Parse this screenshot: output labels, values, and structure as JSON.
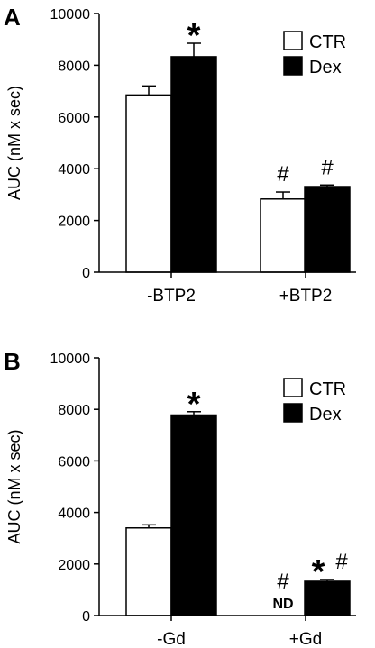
{
  "chart_data": [
    {
      "panel_label": "A",
      "type": "bar",
      "categories": [
        "-BTP2",
        "+BTP2"
      ],
      "ylabel": "AUC (nM x sec)",
      "xlabel": "",
      "ylim": [
        0,
        10000
      ],
      "yticks": [
        0,
        2000,
        4000,
        6000,
        8000,
        10000
      ],
      "legend_placement": "top-right",
      "series": [
        {
          "name": "CTR",
          "fill": "#ffffff",
          "values": [
            6850,
            2830
          ],
          "errors": [
            350,
            270
          ],
          "annotations": [
            "",
            "#"
          ]
        },
        {
          "name": "Dex",
          "fill": "#000000",
          "values": [
            8330,
            3310
          ],
          "errors": [
            520,
            60
          ],
          "annotations": [
            "*",
            "#"
          ]
        }
      ]
    },
    {
      "panel_label": "B",
      "type": "bar",
      "categories": [
        "-Gd",
        "+Gd"
      ],
      "ylabel": "AUC (nM x sec)",
      "xlabel": "",
      "ylim": [
        0,
        10000
      ],
      "yticks": [
        0,
        2000,
        4000,
        6000,
        8000,
        10000
      ],
      "legend_placement": "top-right",
      "series": [
        {
          "name": "CTR",
          "fill": "#ffffff",
          "values": [
            3400,
            0
          ],
          "errors": [
            120,
            0
          ],
          "annotations": [
            "",
            "#"
          ],
          "value_labels": [
            "",
            "ND"
          ]
        },
        {
          "name": "Dex",
          "fill": "#000000",
          "values": [
            7780,
            1330
          ],
          "errors": [
            130,
            70
          ],
          "annotations": [
            "*",
            "* #"
          ]
        }
      ]
    }
  ]
}
